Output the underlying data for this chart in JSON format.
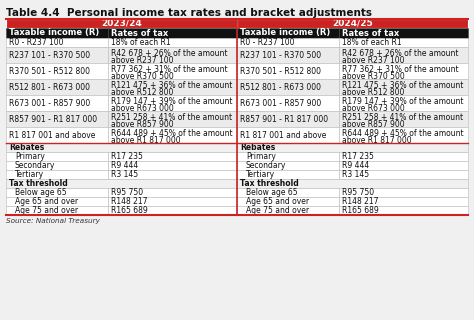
{
  "title": "Table 4.4  Personal income tax rates and bracket adjustments",
  "source": "Source: National Treasury",
  "year_headers": [
    "2023/24",
    "2024/25"
  ],
  "col_headers": [
    "Taxable income (R)",
    "Rates of tax",
    "Taxable income (R)",
    "Rates of tax"
  ],
  "tax_rows": [
    [
      "R0 - R237 100",
      "18% of each R1",
      "R0 - R237 100",
      "18% of each R1"
    ],
    [
      "R237 101 - R370 500",
      "R42 678 + 26% of the amount\nabove R237 100",
      "R237 101 - R370 500",
      "R42 678 + 26% of the amount\nabove R237 100"
    ],
    [
      "R370 501 - R512 800",
      "R77 362 + 31% of the amount\nabove R370 500",
      "R370 501 - R512 800",
      "R77 362 + 31% of the amount\nabove R370 500"
    ],
    [
      "R512 801 - R673 000",
      "R121 475 + 36% of the amount\nabove R512 800",
      "R512 801 - R673 000",
      "R121 475 + 36% of the amount\nabove R512 800"
    ],
    [
      "R673 001 - R857 900",
      "R179 147 + 39% of the amount\nabove R673 000",
      "R673 001 - R857 900",
      "R179 147 + 39% of the amount\nabove R673 000"
    ],
    [
      "R857 901 - R1 817 000",
      "R251 258 + 41% of the amount\nabove R857 900",
      "R857 901 - R1 817 000",
      "R251 258 + 41% of the amount\nabove R857 900"
    ],
    [
      "R1 817 001 and above",
      "R644 489 + 45% of the amount\nabove R1 817 000",
      "R1 817 001 and above",
      "R644 489 + 45% of the amount\nabove R1 817 000"
    ]
  ],
  "rebates_label": "Rebates",
  "rebates": [
    [
      "Primary",
      "R17 235",
      "Primary",
      "R17 235"
    ],
    [
      "Secondary",
      "R9 444",
      "Secondary",
      "R9 444"
    ],
    [
      "Tertiary",
      "R3 145",
      "Tertiary",
      "R3 145"
    ]
  ],
  "threshold_label": "Tax threshold",
  "thresholds": [
    [
      "Below age 65",
      "R95 750",
      "Below age 65",
      "R95 750"
    ],
    [
      "Age 65 and over",
      "R148 217",
      "Age 65 and over",
      "R148 217"
    ],
    [
      "Age 75 and over",
      "R165 689",
      "Age 75 and over",
      "R165 689"
    ]
  ],
  "header_bg": "#cc2222",
  "col_header_bg": "#111111",
  "col_header_text": "#ffffff",
  "year_header_text": "#ffffff",
  "row_bg_alt": "#ebebeb",
  "row_bg_white": "#ffffff",
  "section_bg": "#f0f0f0",
  "border_color": "#cc2222",
  "grid_color": "#bbbbbb",
  "title_fontsize": 7.5,
  "year_fontsize": 6.5,
  "col_header_fontsize": 6.0,
  "cell_fontsize": 5.5,
  "source_fontsize": 5.2
}
